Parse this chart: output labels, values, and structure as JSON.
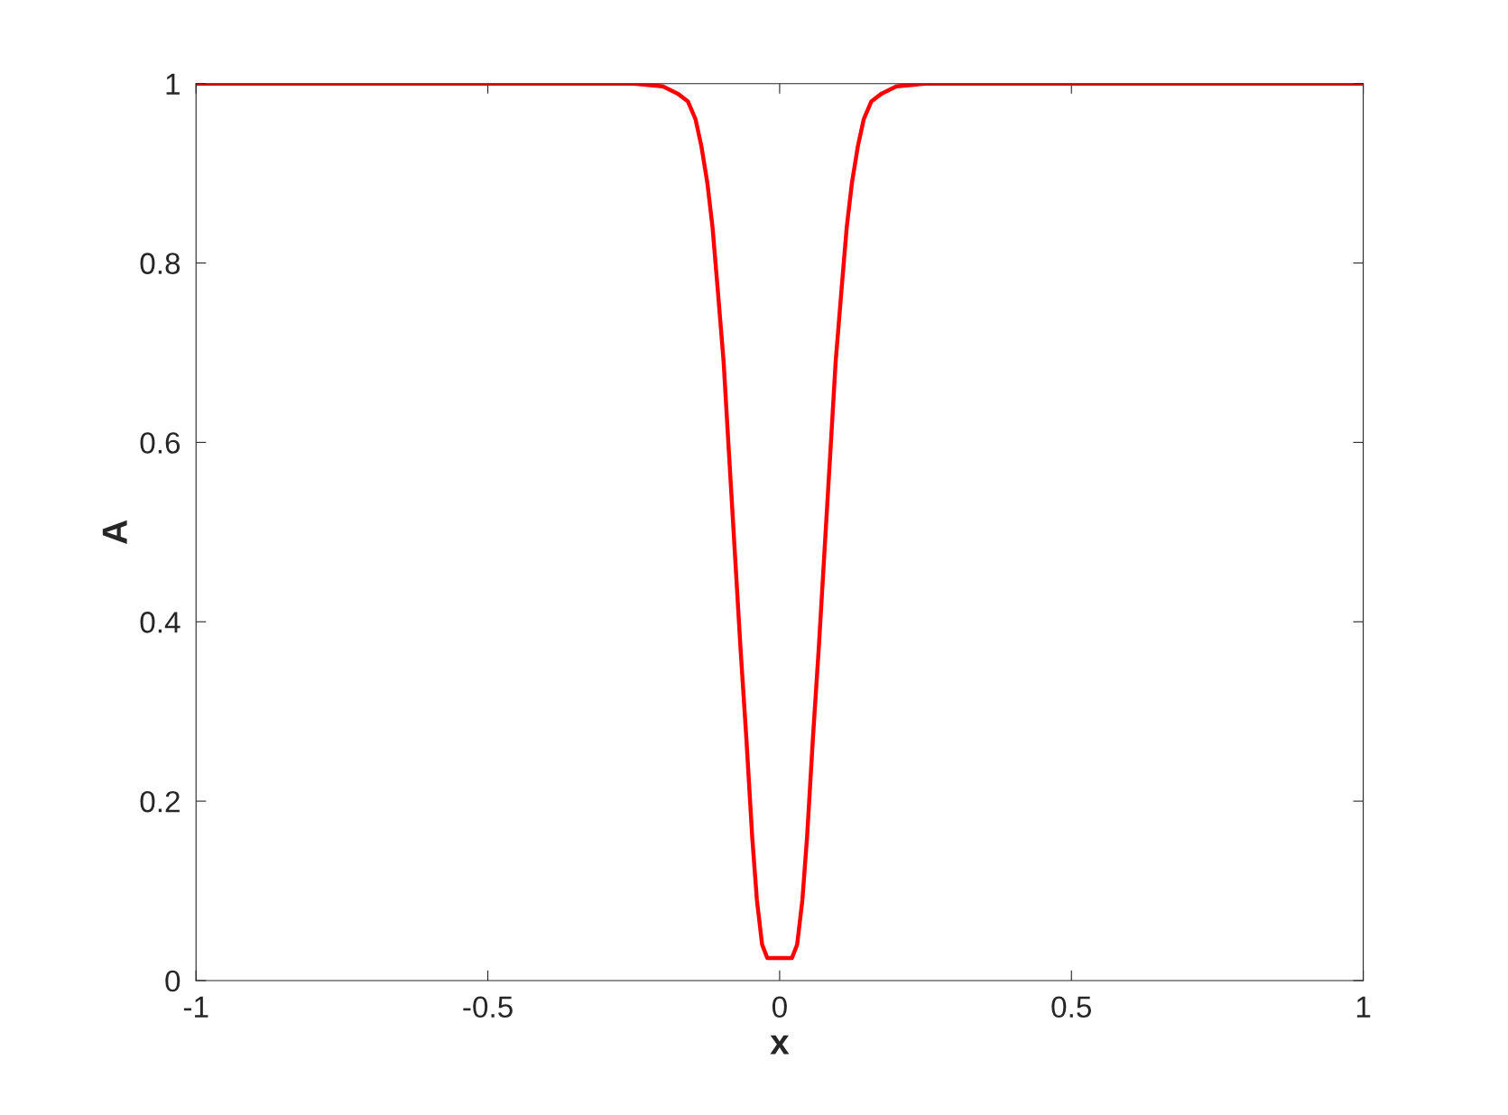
{
  "chart_data": {
    "type": "line",
    "xlabel": "x",
    "ylabel": "A",
    "x": [
      -1,
      -0.25,
      -0.2,
      -0.175,
      -0.157,
      -0.144,
      -0.134,
      -0.124,
      -0.115,
      -0.106,
      -0.096,
      -0.087,
      -0.077,
      -0.067,
      -0.057,
      -0.047,
      -0.039,
      -0.03,
      -0.021,
      0.021,
      0.03,
      0.039,
      0.047,
      0.057,
      0.067,
      0.077,
      0.087,
      0.096,
      0.106,
      0.115,
      0.124,
      0.134,
      0.144,
      0.157,
      0.175,
      0.2,
      0.25,
      1
    ],
    "series": [
      {
        "color": "#ff0000",
        "values": [
          1,
          1,
          0.997,
          0.989,
          0.98,
          0.96,
          0.93,
          0.89,
          0.84,
          0.77,
          0.69,
          0.59,
          0.48,
          0.37,
          0.27,
          0.16,
          0.09,
          0.04,
          0.025,
          0.025,
          0.04,
          0.09,
          0.16,
          0.27,
          0.37,
          0.48,
          0.59,
          0.69,
          0.77,
          0.84,
          0.89,
          0.93,
          0.96,
          0.98,
          0.989,
          0.997,
          1,
          1
        ]
      }
    ],
    "xlim": [
      -1,
      1
    ],
    "ylim": [
      0,
      1
    ],
    "xticks": [
      -1,
      -0.5,
      0,
      0.5,
      1
    ],
    "yticks": [
      0,
      0.2,
      0.4,
      0.6,
      0.8,
      1
    ],
    "grid": false,
    "legend": false,
    "marker": "none",
    "line_style": "solid"
  }
}
